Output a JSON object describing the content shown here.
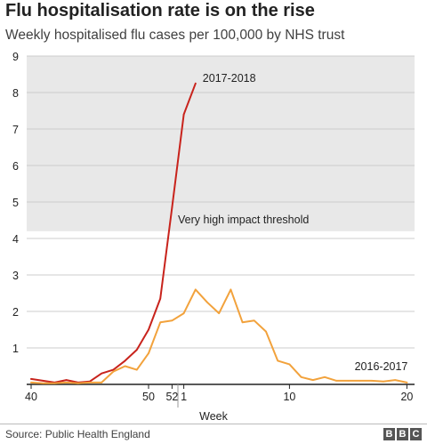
{
  "header": {
    "title": "Flu hospitalisation rate is on the rise",
    "subtitle": "Weekly hospitalised flu cases per 100,000 by NHS trust"
  },
  "footer": {
    "source": "Source: Public Health England",
    "logo_letters": [
      "B",
      "B",
      "C"
    ]
  },
  "chart_data": {
    "type": "line",
    "title": "Flu hospitalisation rate is on the rise",
    "subtitle": "Weekly hospitalised flu cases per 100,000 by NHS trust",
    "xlabel": "Week",
    "ylabel": "",
    "ylim": [
      0,
      9
    ],
    "y_ticks": [
      1,
      2,
      3,
      4,
      5,
      6,
      7,
      8,
      9
    ],
    "x_ticks": [
      "40",
      "50",
      "52",
      "1",
      "10",
      "20"
    ],
    "x_weeks": [
      "40",
      "41",
      "42",
      "43",
      "44",
      "45",
      "46",
      "47",
      "48",
      "49",
      "50",
      "51",
      "52",
      "1",
      "2",
      "3",
      "4",
      "5",
      "6",
      "7",
      "8",
      "9",
      "10",
      "11",
      "12",
      "13",
      "14",
      "15",
      "16",
      "17",
      "18",
      "19",
      "20"
    ],
    "grid": true,
    "shaded_band": {
      "from": 4.2,
      "to": 9,
      "label": "Very high impact threshold",
      "color": "#e8e8e8"
    },
    "series": [
      {
        "name": "2017-2018",
        "color": "#c8231c",
        "values": [
          0.15,
          0.1,
          0.05,
          0.12,
          0.05,
          0.08,
          0.3,
          0.4,
          0.65,
          0.95,
          1.5,
          2.35,
          4.85,
          7.4,
          8.25
        ]
      },
      {
        "name": "2016-2017",
        "color": "#f2a23c",
        "values": [
          0.05,
          0.03,
          0.03,
          0.05,
          0.03,
          0.05,
          0.05,
          0.35,
          0.5,
          0.4,
          0.85,
          1.7,
          1.75,
          1.95,
          2.6,
          2.25,
          1.95,
          2.6,
          1.7,
          1.75,
          1.45,
          0.65,
          0.55,
          0.2,
          0.12,
          0.2,
          0.1,
          0.1,
          0.1,
          0.1,
          0.08,
          0.12,
          0.05
        ]
      }
    ],
    "colors": {
      "band": "#e8e8e8",
      "grid": "#cccccc",
      "axis": "#222222",
      "label": "#222222"
    }
  }
}
